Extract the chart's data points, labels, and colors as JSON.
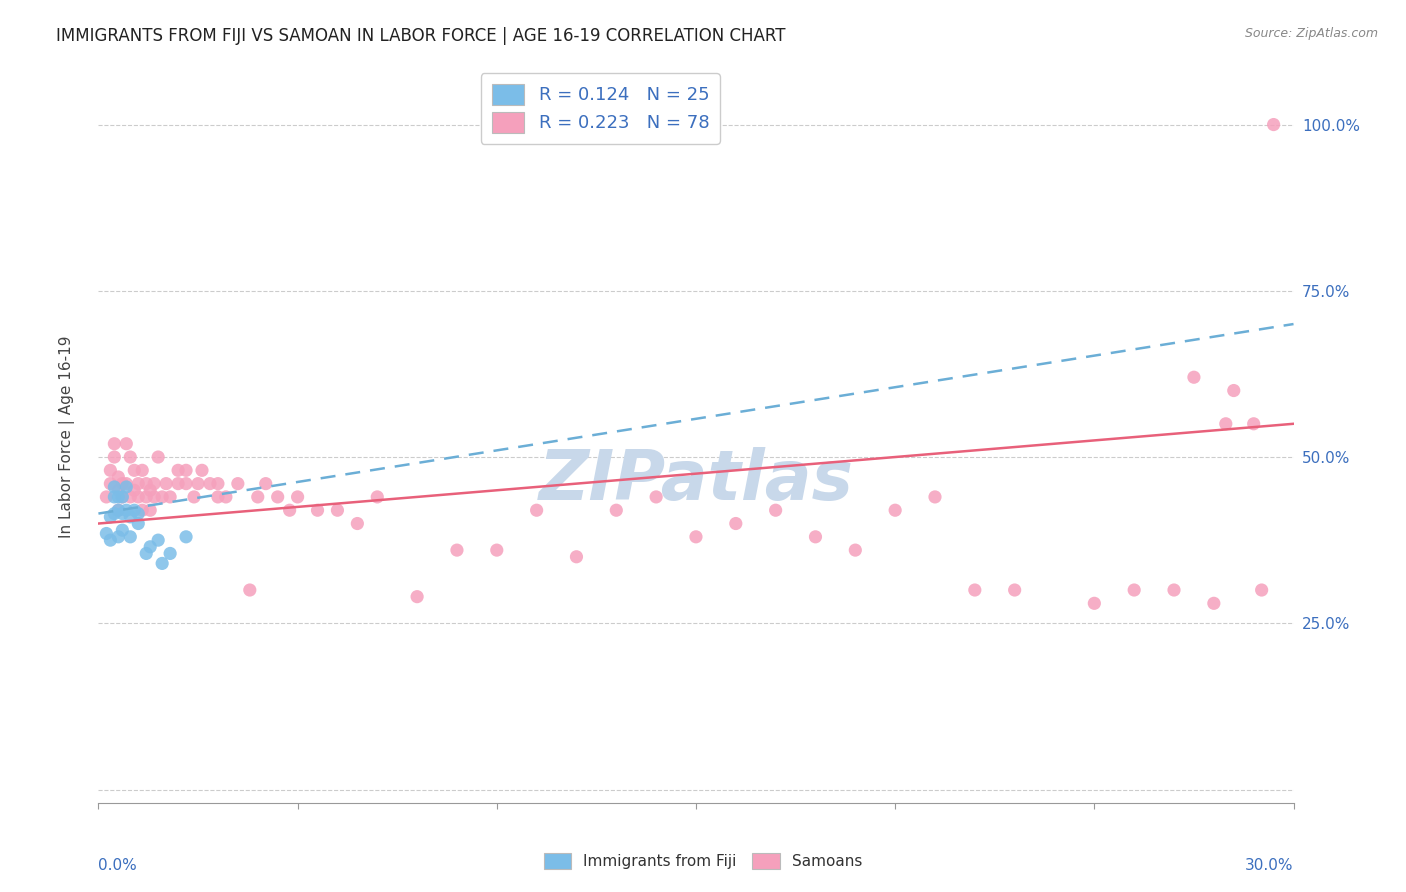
{
  "title": "IMMIGRANTS FROM FIJI VS SAMOAN IN LABOR FORCE | AGE 16-19 CORRELATION CHART",
  "source": "Source: ZipAtlas.com",
  "ylabel": "In Labor Force | Age 16-19",
  "xlim": [
    0.0,
    0.3
  ],
  "ylim": [
    -0.02,
    1.08
  ],
  "fiji_R": 0.124,
  "fiji_N": 25,
  "samoan_R": 0.223,
  "samoan_N": 78,
  "fiji_color": "#7bbde8",
  "samoan_color": "#f5a0bc",
  "fiji_line_color": "#6baed6",
  "samoan_line_color": "#e8607a",
  "watermark": "ZIPatlas",
  "watermark_color": "#c8d8ea",
  "legend_label_color": "#3c6fbe",
  "fiji_x": [
    0.002,
    0.003,
    0.003,
    0.004,
    0.004,
    0.004,
    0.005,
    0.005,
    0.005,
    0.006,
    0.006,
    0.006,
    0.007,
    0.007,
    0.008,
    0.008,
    0.009,
    0.01,
    0.01,
    0.012,
    0.013,
    0.015,
    0.016,
    0.018,
    0.022
  ],
  "fiji_y": [
    0.385,
    0.375,
    0.41,
    0.415,
    0.44,
    0.455,
    0.38,
    0.42,
    0.44,
    0.39,
    0.415,
    0.44,
    0.42,
    0.455,
    0.38,
    0.41,
    0.42,
    0.4,
    0.415,
    0.355,
    0.365,
    0.375,
    0.34,
    0.355,
    0.38
  ],
  "samoan_x": [
    0.002,
    0.003,
    0.003,
    0.004,
    0.004,
    0.005,
    0.005,
    0.005,
    0.006,
    0.006,
    0.007,
    0.007,
    0.008,
    0.008,
    0.009,
    0.009,
    0.01,
    0.01,
    0.011,
    0.011,
    0.012,
    0.012,
    0.013,
    0.013,
    0.014,
    0.014,
    0.015,
    0.016,
    0.017,
    0.018,
    0.02,
    0.02,
    0.022,
    0.022,
    0.024,
    0.025,
    0.026,
    0.028,
    0.03,
    0.03,
    0.032,
    0.035,
    0.038,
    0.04,
    0.042,
    0.045,
    0.048,
    0.05,
    0.055,
    0.06,
    0.065,
    0.07,
    0.08,
    0.09,
    0.1,
    0.11,
    0.12,
    0.13,
    0.14,
    0.15,
    0.16,
    0.17,
    0.18,
    0.19,
    0.2,
    0.21,
    0.22,
    0.23,
    0.25,
    0.26,
    0.27,
    0.275,
    0.28,
    0.283,
    0.285,
    0.29,
    0.292,
    0.295
  ],
  "samoan_y": [
    0.44,
    0.48,
    0.46,
    0.5,
    0.52,
    0.45,
    0.47,
    0.42,
    0.44,
    0.46,
    0.46,
    0.52,
    0.44,
    0.5,
    0.45,
    0.48,
    0.44,
    0.46,
    0.42,
    0.48,
    0.44,
    0.46,
    0.42,
    0.45,
    0.44,
    0.46,
    0.5,
    0.44,
    0.46,
    0.44,
    0.46,
    0.48,
    0.46,
    0.48,
    0.44,
    0.46,
    0.48,
    0.46,
    0.44,
    0.46,
    0.44,
    0.46,
    0.3,
    0.44,
    0.46,
    0.44,
    0.42,
    0.44,
    0.42,
    0.42,
    0.4,
    0.44,
    0.29,
    0.36,
    0.36,
    0.42,
    0.35,
    0.42,
    0.44,
    0.38,
    0.4,
    0.42,
    0.38,
    0.36,
    0.42,
    0.44,
    0.3,
    0.3,
    0.28,
    0.3,
    0.3,
    0.62,
    0.28,
    0.55,
    0.6,
    0.55,
    0.3,
    1.0
  ],
  "fiji_trend_x": [
    0.0,
    0.3
  ],
  "fiji_trend_y": [
    0.415,
    0.7
  ],
  "samoan_trend_x": [
    0.0,
    0.3
  ],
  "samoan_trend_y": [
    0.4,
    0.55
  ]
}
